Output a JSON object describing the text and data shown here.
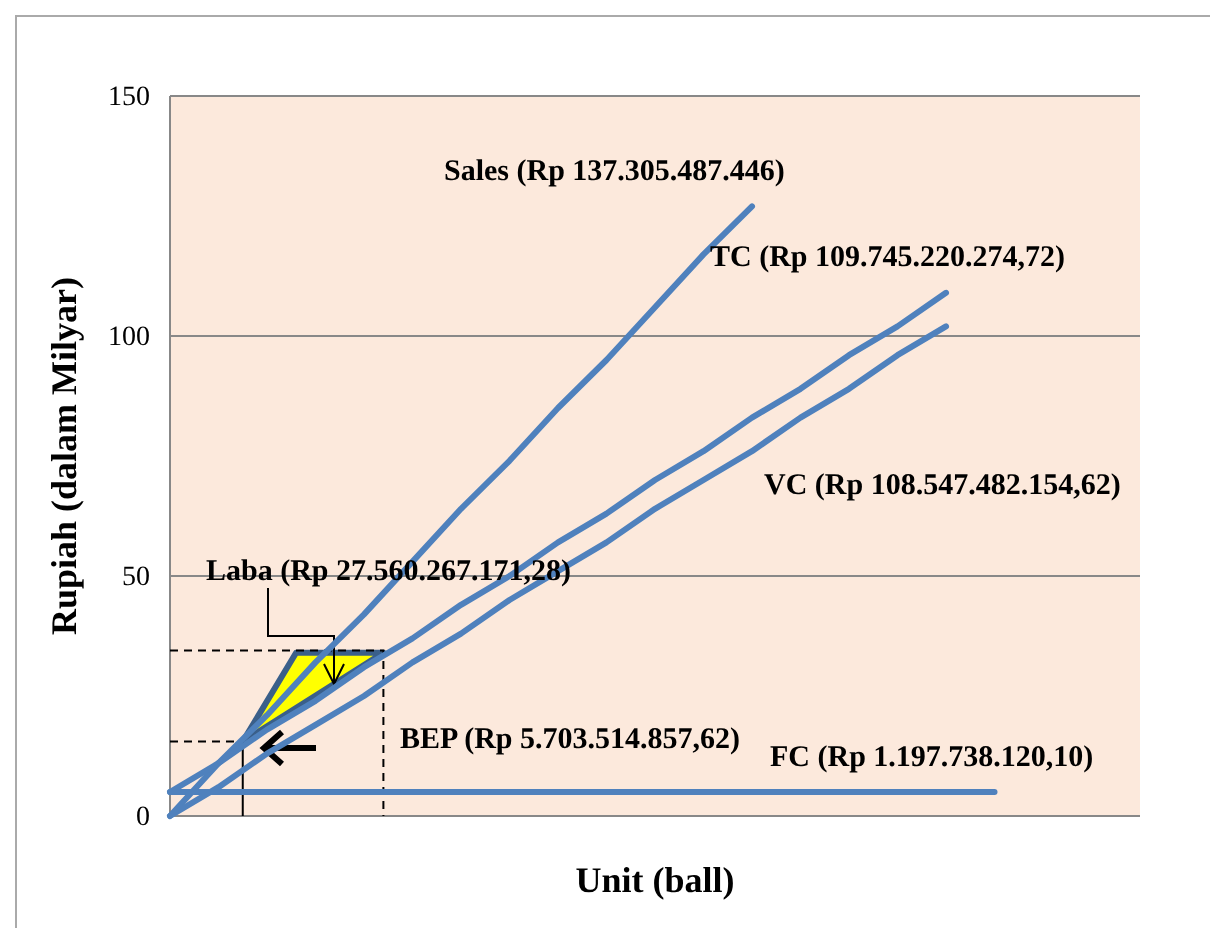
{
  "chart_data": {
    "type": "line",
    "xlabel": "Unit (ball)",
    "ylabel": "Rupiah (dalam Milyar)",
    "categories": [
      null,
      null,
      null,
      null,
      null,
      null,
      null,
      null,
      null,
      null,
      null,
      null,
      null,
      null,
      null,
      null,
      null,
      null,
      null,
      null,
      null
    ],
    "series": [
      {
        "color": "#4f81bd",
        "values": [
          0,
          11,
          21,
          32,
          42,
          53,
          64,
          74,
          85,
          95,
          106,
          117,
          127,
          null,
          null,
          null,
          null,
          null,
          null,
          null,
          null
        ]
      },
      {
        "color": "#4f81bd",
        "values": [
          5,
          11,
          18,
          24,
          31,
          37,
          44,
          50,
          57,
          63,
          70,
          76,
          83,
          89,
          96,
          102,
          109,
          null,
          null,
          null,
          null
        ]
      },
      {
        "color": "#4f81bd",
        "values": [
          0,
          6,
          13,
          19,
          25,
          32,
          38,
          45,
          51,
          57,
          64,
          70,
          76,
          83,
          89,
          96,
          102,
          null,
          null,
          null,
          null
        ]
      },
      {
        "color": "#4f81bd",
        "values": [
          5,
          5,
          5,
          5,
          5,
          5,
          5,
          5,
          5,
          5,
          5,
          5,
          5,
          5,
          5,
          5,
          5,
          5,
          null,
          null,
          null
        ]
      }
    ],
    "ylim": [
      0,
      150
    ],
    "yticks": [
      0,
      50,
      100,
      150
    ],
    "grid": "y",
    "tick_labels": "y",
    "line_style": "solid",
    "annotations": [
      "Sales (Rp  137.305.487.446)",
      "TC (Rp 109.745.220.274,72)",
      "VC (Rp 108.547.482.154,62)",
      "Laba  (Rp 27.560.267.171,28)",
      "BEP  (Rp  5.703.514.857,62)",
      "FC (Rp 1.197.738.120,10)"
    ]
  }
}
